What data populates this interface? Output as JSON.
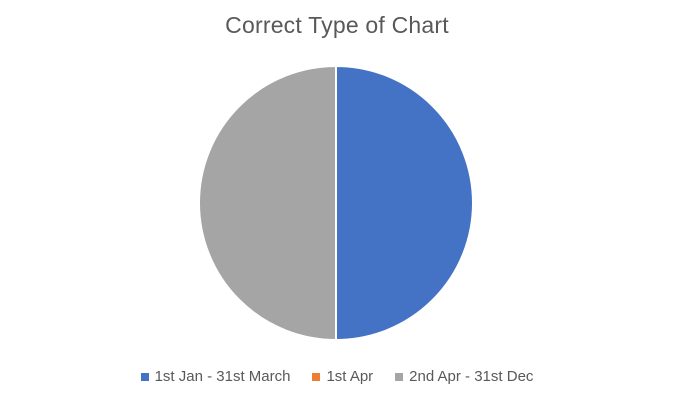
{
  "chart_data": {
    "type": "pie",
    "title": "Correct Type of Chart",
    "categories": [
      "1st Jan - 31st March",
      "1st Apr",
      "2nd Apr - 31st Dec"
    ],
    "values": [
      50,
      0,
      50
    ],
    "colors": [
      "#4472C4",
      "#ED7D31",
      "#A5A5A5"
    ],
    "start_angle_deg": 0,
    "direction": "clockwise",
    "legend_position": "bottom",
    "slice_border_color": "#ffffff"
  }
}
